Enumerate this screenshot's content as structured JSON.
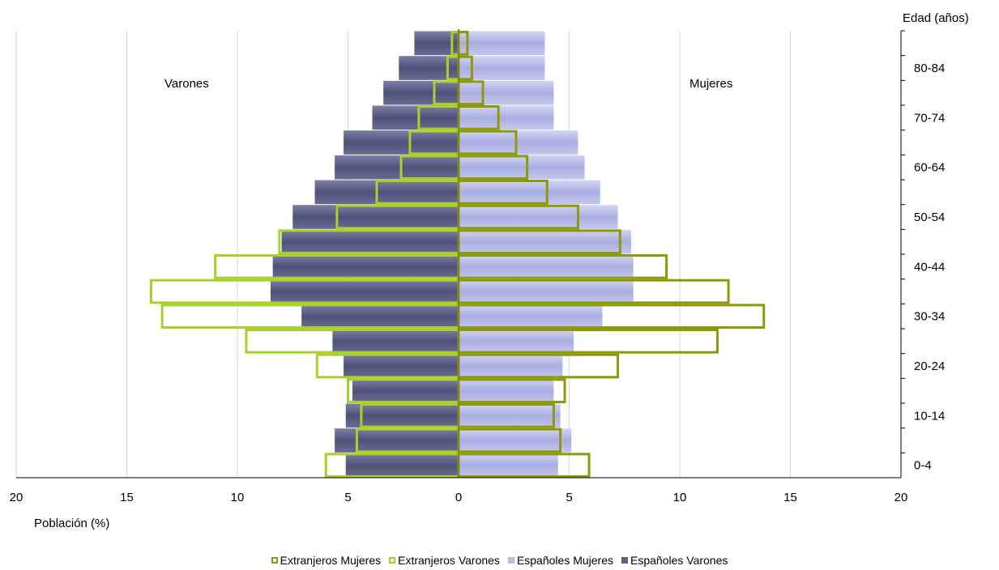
{
  "chart_data": {
    "type": "bar",
    "orientation": "horizontal-pyramid",
    "y_title": "Edad (años)",
    "x_title": "Población (%)",
    "annotations": {
      "left": "Varones",
      "right": "Mujeres"
    },
    "xlim": [
      -20,
      20
    ],
    "x_ticks": [
      -20,
      -15,
      -10,
      -5,
      0,
      5,
      10,
      15,
      20
    ],
    "x_tick_labels": [
      "20",
      "15",
      "10",
      "5",
      "0",
      "5",
      "10",
      "15",
      "20"
    ],
    "categories": [
      "0-4",
      "5-9",
      "10-14",
      "15-19",
      "20-24",
      "25-29",
      "30-34",
      "35-39",
      "40-44",
      "45-49",
      "50-54",
      "55-59",
      "60-64",
      "65-69",
      "70-74",
      "75-79",
      "80-84",
      "85+"
    ],
    "shown_category_labels": [
      "0-4",
      "10-14",
      "20-24",
      "30-34",
      "40-44",
      "50-54",
      "60-64",
      "70-74",
      "80-84"
    ],
    "grid": "vertical",
    "legend_position": "bottom",
    "series": [
      {
        "name": "Extranjeros Mujeres",
        "side": "right",
        "style": "outline",
        "color": "#8c9a0a",
        "values": [
          5.9,
          4.6,
          4.3,
          4.8,
          7.2,
          11.7,
          13.8,
          12.2,
          9.4,
          7.3,
          5.4,
          4.0,
          3.1,
          2.6,
          1.8,
          1.1,
          0.6,
          0.4
        ]
      },
      {
        "name": "Extranjeros Varones",
        "side": "left",
        "style": "outline",
        "color": "#a9d12b",
        "values": [
          6.0,
          4.6,
          4.4,
          5.0,
          6.4,
          9.6,
          13.4,
          13.9,
          11.0,
          8.1,
          5.5,
          3.7,
          2.6,
          2.2,
          1.8,
          1.1,
          0.5,
          0.3
        ]
      },
      {
        "name": "Españoles Mujeres",
        "side": "right",
        "style": "filled",
        "color": "#b8bce8",
        "values": [
          4.5,
          5.1,
          4.6,
          4.3,
          4.7,
          5.2,
          6.5,
          7.9,
          7.9,
          7.8,
          7.2,
          6.4,
          5.7,
          5.4,
          4.3,
          4.3,
          3.9,
          3.9
        ]
      },
      {
        "name": "Españoles Varones",
        "side": "left",
        "style": "filled",
        "color": "#5c5e86",
        "values": [
          5.1,
          5.6,
          5.1,
          4.8,
          5.2,
          5.7,
          7.1,
          8.5,
          8.4,
          8.0,
          7.5,
          6.5,
          5.6,
          5.2,
          3.9,
          3.4,
          2.7,
          2.0
        ]
      }
    ]
  }
}
